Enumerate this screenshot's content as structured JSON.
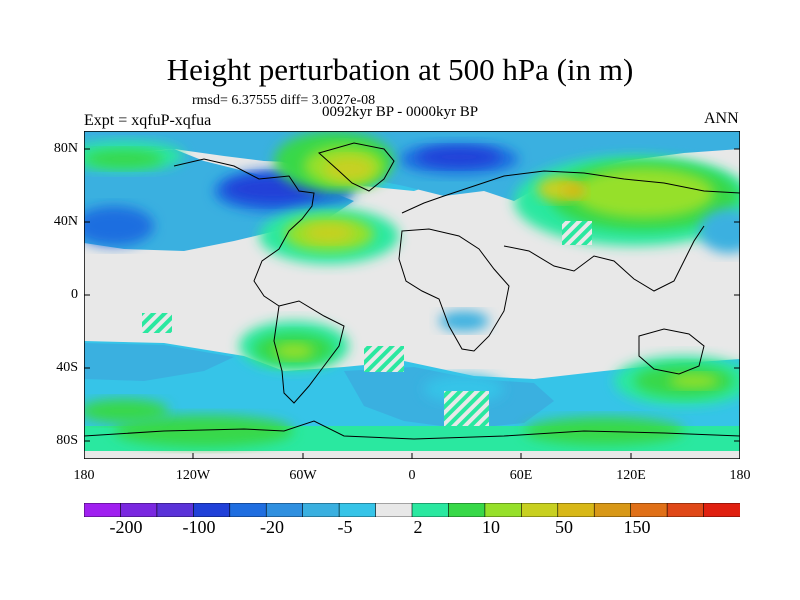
{
  "title": "Height perturbation at 500 hPa (in m)",
  "stats": "rmsd= 6.37555 diff= 3.0027e-08",
  "period": "0092kyr BP - 0000kyr BP",
  "expt": "Expt = xqfuP-xqfua",
  "season": "ANN",
  "y_axis_labels": [
    "80N",
    "40N",
    "0",
    "40S",
    "80S"
  ],
  "x_axis_labels": [
    "180",
    "120W",
    "60W",
    "0",
    "60E",
    "120E",
    "180"
  ],
  "colorbar": {
    "colors": [
      "#a020f0",
      "#7a28e0",
      "#5a32d8",
      "#2040d8",
      "#1f6ee0",
      "#3090e0",
      "#3ab0e0",
      "#36c4e8",
      "#e8e8e8",
      "#2ae8a0",
      "#38d848",
      "#96e02a",
      "#c8d020",
      "#d8b818",
      "#d89818",
      "#e07018",
      "#e04818",
      "#e02010"
    ],
    "labels": [
      "-200",
      "-100",
      "-20",
      "-5",
      "2",
      "10",
      "50",
      "150"
    ]
  },
  "colors": {
    "neutral": "#e8e8e8",
    "coastline": "#000000"
  }
}
